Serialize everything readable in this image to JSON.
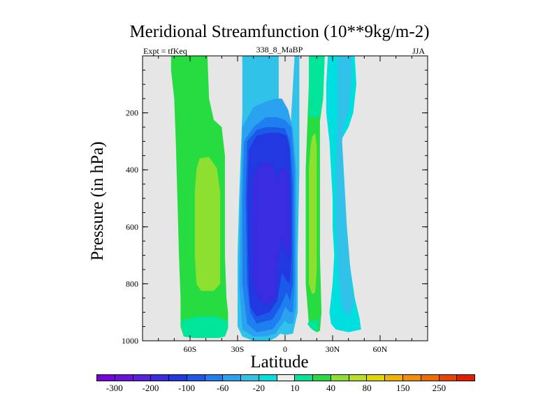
{
  "chart_data": {
    "type": "contour",
    "title": "Meridional Streamfunction (10**9kg/m-2)",
    "left_string": "Expt = tfKeq",
    "center_string": "338_8_MaBP",
    "right_string": "JJA",
    "xlabel": "Latitude",
    "ylabel": "Pressure (in hPa)",
    "xlim": [
      -90,
      90
    ],
    "ylim": [
      1000,
      0
    ],
    "x_ticks": [
      {
        "value": -60,
        "label": "60S"
      },
      {
        "value": -30,
        "label": "30S"
      },
      {
        "value": 0,
        "label": "0"
      },
      {
        "value": 30,
        "label": "30N"
      },
      {
        "value": 60,
        "label": "60N"
      }
    ],
    "y_ticks": [
      {
        "value": 200,
        "label": "200"
      },
      {
        "value": 400,
        "label": "400"
      },
      {
        "value": 600,
        "label": "600"
      },
      {
        "value": 800,
        "label": "800"
      },
      {
        "value": 1000,
        "label": "1000"
      }
    ],
    "background_color": "#e6e6e6",
    "colorbar": {
      "colors": [
        "#7b00e0",
        "#6a10e0",
        "#5a1fe0",
        "#3a2ce0",
        "#2238e0",
        "#1a5ae8",
        "#1f7ff0",
        "#2aa2f0",
        "#30c2e8",
        "#00dfe0",
        "#ececec",
        "#00e59a",
        "#26dc40",
        "#8ee030",
        "#b8e020",
        "#e2d500",
        "#f0b400",
        "#f49000",
        "#f06c00",
        "#e84400",
        "#e01e00"
      ],
      "labels": [
        {
          "text": "-300",
          "boundary": 1
        },
        {
          "text": "-200",
          "boundary": 3
        },
        {
          "text": "-100",
          "boundary": 5
        },
        {
          "text": "-60",
          "boundary": 7
        },
        {
          "text": "-20",
          "boundary": 9
        },
        {
          "text": "10",
          "boundary": 11
        },
        {
          "text": "40",
          "boundary": 13
        },
        {
          "text": "80",
          "boundary": 15
        },
        {
          "text": "150",
          "boundary": 17
        },
        {
          "text": "250",
          "boundary": 19
        }
      ]
    },
    "regions": [
      {
        "name": "sh-outer-cell",
        "color": "#26dc40",
        "points": [
          [
            -70,
            0
          ],
          [
            -67,
            0
          ],
          [
            -63,
            0
          ],
          [
            -60,
            0
          ],
          [
            -54,
            0
          ],
          [
            -51,
            0
          ],
          [
            -49,
            0
          ],
          [
            -48,
            150
          ],
          [
            -45,
            225
          ],
          [
            -40,
            250
          ],
          [
            -38,
            350
          ],
          [
            -38,
            500
          ],
          [
            -38,
            700
          ],
          [
            -37,
            850
          ],
          [
            -36,
            900
          ],
          [
            -36,
            955
          ],
          [
            -38,
            985
          ],
          [
            -42,
            990
          ],
          [
            -58,
            990
          ],
          [
            -64,
            985
          ],
          [
            -66,
            950
          ],
          [
            -66,
            850
          ],
          [
            -67,
            700
          ],
          [
            -68,
            500
          ],
          [
            -69,
            300
          ],
          [
            -70,
            150
          ],
          [
            -72,
            50
          ],
          [
            -72,
            0
          ]
        ]
      },
      {
        "name": "sh-outer-core",
        "color": "#8ee030",
        "points": [
          [
            -54,
            360
          ],
          [
            -48,
            355
          ],
          [
            -43,
            395
          ],
          [
            -41,
            480
          ],
          [
            -41,
            600
          ],
          [
            -41,
            700
          ],
          [
            -41,
            800
          ],
          [
            -45,
            825
          ],
          [
            -53,
            825
          ],
          [
            -56,
            800
          ],
          [
            -57,
            700
          ],
          [
            -57,
            600
          ],
          [
            -57,
            480
          ],
          [
            -56,
            400
          ]
        ]
      },
      {
        "name": "sh-edge",
        "color": "#00e59a",
        "points": [
          [
            -66,
            930
          ],
          [
            -64,
            985
          ],
          [
            -58,
            990
          ],
          [
            -42,
            990
          ],
          [
            -38,
            985
          ],
          [
            -36,
            955
          ],
          [
            -36,
            930
          ],
          [
            -44,
            915
          ],
          [
            -56,
            915
          ]
        ]
      },
      {
        "name": "hadley-outer",
        "color": "#30c2e8",
        "points": [
          [
            -27,
            0
          ],
          [
            -24,
            0
          ],
          [
            -16,
            0
          ],
          [
            -7,
            0
          ],
          [
            -4,
            0
          ],
          [
            -4,
            300
          ],
          [
            -2,
            310
          ],
          [
            3,
            290
          ],
          [
            5,
            100
          ],
          [
            6,
            0
          ],
          [
            9,
            0
          ],
          [
            9,
            400
          ],
          [
            8,
            700
          ],
          [
            8,
            900
          ],
          [
            5,
            975
          ],
          [
            0,
            980
          ],
          [
            -3,
            975
          ],
          [
            -6,
            990
          ],
          [
            -10,
            1000
          ],
          [
            -20,
            1000
          ],
          [
            -27,
            985
          ],
          [
            -30,
            950
          ],
          [
            -30,
            700
          ],
          [
            -29,
            500
          ],
          [
            -27,
            200
          ]
        ]
      },
      {
        "name": "hadley-l2",
        "color": "#2aa2f0",
        "points": [
          [
            -27,
            250
          ],
          [
            -20,
            180
          ],
          [
            -12,
            160
          ],
          [
            -6,
            150
          ],
          [
            -2,
            150
          ],
          [
            2,
            190
          ],
          [
            5,
            260
          ],
          [
            7,
            400
          ],
          [
            7,
            700
          ],
          [
            7,
            880
          ],
          [
            5,
            940
          ],
          [
            2,
            940
          ],
          [
            0,
            930
          ],
          [
            -3,
            950
          ],
          [
            -6,
            975
          ],
          [
            -12,
            985
          ],
          [
            -20,
            985
          ],
          [
            -27,
            960
          ],
          [
            -29,
            800
          ],
          [
            -28,
            500
          ]
        ]
      },
      {
        "name": "hadley-l3",
        "color": "#1f7ff0",
        "points": [
          [
            -26,
            300
          ],
          [
            -20,
            250
          ],
          [
            -12,
            215
          ],
          [
            -5,
            215
          ],
          [
            0,
            225
          ],
          [
            4,
            250
          ],
          [
            6,
            400
          ],
          [
            6,
            600
          ],
          [
            6,
            800
          ],
          [
            5,
            900
          ],
          [
            3,
            900
          ],
          [
            0,
            880
          ],
          [
            -3,
            925
          ],
          [
            -8,
            960
          ],
          [
            -18,
            970
          ],
          [
            -24,
            940
          ],
          [
            -27,
            800
          ],
          [
            -27,
            500
          ]
        ]
      },
      {
        "name": "hadley-l4",
        "color": "#1a5ae8",
        "points": [
          [
            -24,
            300
          ],
          [
            -18,
            260
          ],
          [
            -12,
            250
          ],
          [
            -6,
            250
          ],
          [
            0,
            255
          ],
          [
            3,
            300
          ],
          [
            5,
            450
          ],
          [
            5,
            620
          ],
          [
            5,
            800
          ],
          [
            3,
            860
          ],
          [
            1,
            830
          ],
          [
            -3,
            880
          ],
          [
            -8,
            925
          ],
          [
            -18,
            940
          ],
          [
            -22,
            900
          ],
          [
            -24,
            800
          ],
          [
            -25,
            500
          ]
        ]
      },
      {
        "name": "hadley-l5",
        "color": "#2238e0",
        "points": [
          [
            -23,
            330
          ],
          [
            -18,
            280
          ],
          [
            -10,
            270
          ],
          [
            -4,
            270
          ],
          [
            1,
            280
          ],
          [
            3,
            330
          ],
          [
            4,
            500
          ],
          [
            4,
            700
          ],
          [
            3,
            800
          ],
          [
            1,
            790
          ],
          [
            -2,
            760
          ],
          [
            -5,
            860
          ],
          [
            -10,
            900
          ],
          [
            -18,
            915
          ],
          [
            -22,
            880
          ],
          [
            -23,
            800
          ],
          [
            -24,
            500
          ]
        ]
      },
      {
        "name": "hadley-core",
        "color": "#3a2ce0",
        "points": [
          [
            -20,
            420
          ],
          [
            -15,
            380
          ],
          [
            -9,
            375
          ],
          [
            -7,
            400
          ],
          [
            -5,
            440
          ],
          [
            -3,
            400
          ],
          [
            0,
            395
          ],
          [
            2,
            420
          ],
          [
            3,
            550
          ],
          [
            3,
            660
          ],
          [
            2,
            720
          ],
          [
            -1,
            660
          ],
          [
            -3,
            640
          ],
          [
            -4,
            720
          ],
          [
            -6,
            850
          ],
          [
            -10,
            870
          ],
          [
            -16,
            860
          ],
          [
            -20,
            800
          ],
          [
            -21,
            600
          ]
        ]
      },
      {
        "name": "nh-cell-outer",
        "color": "#26dc40",
        "points": [
          [
            15,
            0
          ],
          [
            23,
            0
          ],
          [
            25,
            0
          ],
          [
            24,
            150
          ],
          [
            22,
            230
          ],
          [
            22,
            400
          ],
          [
            22,
            700
          ],
          [
            23,
            900
          ],
          [
            22,
            965
          ],
          [
            20,
            970
          ],
          [
            17,
            960
          ],
          [
            15,
            940
          ],
          [
            13,
            800
          ],
          [
            13,
            600
          ],
          [
            13,
            400
          ],
          [
            14,
            250
          ],
          [
            15,
            100
          ]
        ]
      },
      {
        "name": "nh-cell-inner",
        "color": "#8ee030",
        "points": [
          [
            17,
            285
          ],
          [
            19,
            270
          ],
          [
            20,
            320
          ],
          [
            20,
            550
          ],
          [
            20,
            750
          ],
          [
            19,
            830
          ],
          [
            17,
            835
          ],
          [
            15,
            800
          ],
          [
            15,
            600
          ],
          [
            15,
            400
          ],
          [
            16,
            320
          ]
        ]
      },
      {
        "name": "nh-cell-top",
        "color": "#00e59a",
        "points": [
          [
            15,
            0
          ],
          [
            25,
            0
          ],
          [
            24,
            150
          ],
          [
            22,
            215
          ],
          [
            15,
            215
          ],
          [
            15,
            100
          ]
        ]
      },
      {
        "name": "nh-cell-edge",
        "color": "#00e59a",
        "points": [
          [
            14,
            940
          ],
          [
            16,
            955
          ],
          [
            20,
            970
          ],
          [
            23,
            900
          ],
          [
            22,
            920
          ],
          [
            20,
            930
          ],
          [
            16,
            930
          ]
        ]
      },
      {
        "name": "nh-outer-light",
        "color": "#00dfe0",
        "points": [
          [
            27,
            0
          ],
          [
            37,
            0
          ],
          [
            42,
            0
          ],
          [
            44,
            0
          ],
          [
            45,
            100
          ],
          [
            43,
            200
          ],
          [
            40,
            250
          ],
          [
            36,
            290
          ],
          [
            35,
            380
          ],
          [
            37,
            500
          ],
          [
            40,
            700
          ],
          [
            44,
            850
          ],
          [
            47,
            920
          ],
          [
            48,
            960
          ],
          [
            40,
            970
          ],
          [
            32,
            960
          ],
          [
            29,
            940
          ],
          [
            28,
            900
          ],
          [
            30,
            800
          ],
          [
            31,
            700
          ],
          [
            30,
            600
          ],
          [
            30,
            500
          ],
          [
            28,
            300
          ],
          [
            26,
            200
          ],
          [
            26,
            100
          ]
        ]
      },
      {
        "name": "nh-outer-band",
        "color": "#30c2e8",
        "points": [
          [
            33,
            0
          ],
          [
            37,
            0
          ],
          [
            42,
            0
          ],
          [
            42,
            100
          ],
          [
            40,
            200
          ],
          [
            37,
            240
          ],
          [
            36,
            300
          ],
          [
            37,
            400
          ],
          [
            39,
            600
          ],
          [
            42,
            800
          ],
          [
            44,
            860
          ],
          [
            40,
            920
          ],
          [
            36,
            880
          ],
          [
            34,
            800
          ],
          [
            33,
            700
          ],
          [
            32,
            600
          ],
          [
            32,
            500
          ],
          [
            32,
            400
          ],
          [
            33,
            250
          ],
          [
            33,
            100
          ]
        ]
      }
    ]
  }
}
